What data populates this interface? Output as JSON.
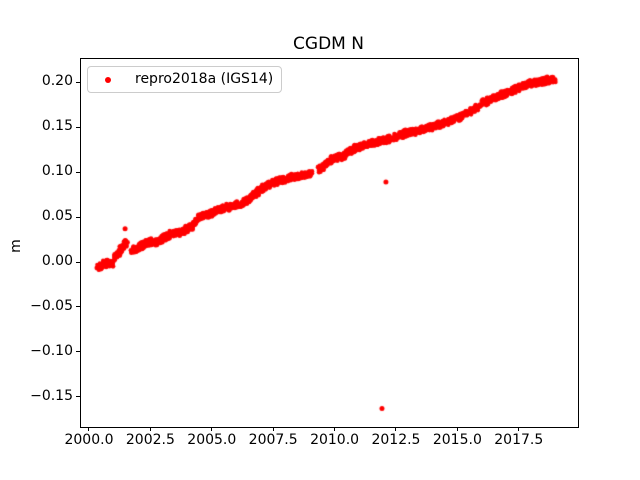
{
  "figure": {
    "title": "CGDM N",
    "ylabel": "m",
    "background": "#ffffff",
    "accent_color": "#ff0000"
  },
  "legend": {
    "label": "repro2018a (IGS14)",
    "marker_color": "#ff0000",
    "position": "upper-left"
  },
  "chart_data": {
    "type": "scatter",
    "title": "CGDM N",
    "xlabel": "",
    "ylabel": "m",
    "grid": false,
    "legend_position": "upper-left",
    "xlim": [
      1999.634,
      2019.871
    ],
    "ylim": [
      -0.1826,
      0.2272
    ],
    "xticks": [
      2000.0,
      2002.5,
      2005.0,
      2007.5,
      2010.0,
      2012.5,
      2015.0,
      2017.5
    ],
    "xtick_labels": [
      "2000.0",
      "2002.5",
      "2005.0",
      "2007.5",
      "2010.0",
      "2012.5",
      "2015.0",
      "2017.5"
    ],
    "yticks": [
      0.2,
      0.15,
      0.1,
      0.05,
      0.0,
      -0.05,
      -0.1,
      -0.15
    ],
    "ytick_labels": [
      "0.20",
      "0.15",
      "0.10",
      "0.05",
      "0.00",
      "−0.05",
      "−0.10",
      "−0.15"
    ],
    "series": [
      {
        "name": "repro2018a (IGS14)",
        "color": "#ff0000",
        "marker": "dot",
        "marker_radius_px": 2.2,
        "band_halfwidth_m": 0.0035,
        "segments": [
          [
            [
              2000.4,
              -0.004
            ],
            [
              2000.48,
              -0.007
            ],
            [
              2000.56,
              -0.004
            ],
            [
              2000.64,
              0.0
            ],
            [
              2000.72,
              -0.002
            ],
            [
              2000.8,
              -0.001
            ],
            [
              2000.88,
              -0.003
            ],
            [
              2000.95,
              -0.001
            ]
          ],
          [
            [
              2001.05,
              0.005
            ],
            [
              2001.15,
              0.009
            ],
            [
              2001.25,
              0.013
            ],
            [
              2001.35,
              0.015
            ],
            [
              2001.45,
              0.02
            ],
            [
              2001.55,
              0.022
            ]
          ],
          [
            [
              2001.75,
              0.013
            ],
            [
              2002.0,
              0.016
            ],
            [
              2002.25,
              0.02
            ],
            [
              2002.5,
              0.023
            ],
            [
              2002.75,
              0.022
            ],
            [
              2003.0,
              0.026
            ],
            [
              2003.25,
              0.03
            ],
            [
              2003.5,
              0.033
            ],
            [
              2003.75,
              0.032
            ],
            [
              2004.0,
              0.037
            ],
            [
              2004.25,
              0.041
            ],
            [
              2004.5,
              0.05
            ],
            [
              2004.75,
              0.052
            ],
            [
              2005.0,
              0.054
            ],
            [
              2005.25,
              0.058
            ],
            [
              2005.5,
              0.06
            ],
            [
              2005.75,
              0.062
            ],
            [
              2006.0,
              0.064
            ],
            [
              2006.25,
              0.065
            ],
            [
              2006.5,
              0.069
            ],
            [
              2006.75,
              0.076
            ],
            [
              2007.0,
              0.081
            ],
            [
              2007.25,
              0.085
            ],
            [
              2007.5,
              0.088
            ],
            [
              2007.75,
              0.091
            ],
            [
              2008.0,
              0.092
            ],
            [
              2008.25,
              0.094
            ],
            [
              2008.5,
              0.096
            ],
            [
              2008.75,
              0.097
            ],
            [
              2009.02,
              0.098
            ]
          ],
          [
            [
              2009.32,
              0.103
            ],
            [
              2009.5,
              0.106
            ],
            [
              2009.75,
              0.112
            ],
            [
              2010.0,
              0.116
            ],
            [
              2010.25,
              0.117
            ],
            [
              2010.4,
              0.119
            ],
            [
              2010.5,
              0.121
            ],
            [
              2010.75,
              0.125
            ],
            [
              2011.0,
              0.128
            ],
            [
              2011.25,
              0.131
            ],
            [
              2011.5,
              0.133
            ],
            [
              2011.75,
              0.134
            ],
            [
              2012.0,
              0.136
            ],
            [
              2012.25,
              0.137
            ],
            [
              2012.5,
              0.139
            ],
            [
              2012.75,
              0.142
            ],
            [
              2013.0,
              0.144
            ],
            [
              2013.25,
              0.145
            ],
            [
              2013.5,
              0.147
            ],
            [
              2013.75,
              0.149
            ],
            [
              2014.0,
              0.151
            ],
            [
              2014.25,
              0.153
            ],
            [
              2014.5,
              0.155
            ],
            [
              2014.75,
              0.158
            ],
            [
              2015.0,
              0.16
            ],
            [
              2015.25,
              0.164
            ],
            [
              2015.5,
              0.167
            ],
            [
              2015.8,
              0.172
            ]
          ],
          [
            [
              2015.95,
              0.176
            ],
            [
              2016.25,
              0.18
            ],
            [
              2016.5,
              0.183
            ],
            [
              2016.75,
              0.186
            ],
            [
              2017.0,
              0.188
            ],
            [
              2017.25,
              0.191
            ],
            [
              2017.5,
              0.194
            ],
            [
              2017.75,
              0.197
            ],
            [
              2018.0,
              0.199
            ],
            [
              2018.25,
              0.2
            ],
            [
              2018.5,
              0.201
            ],
            [
              2018.75,
              0.203
            ],
            [
              2018.97,
              0.204
            ]
          ]
        ],
        "outliers": [
          [
            2001.47,
            0.037
          ],
          [
            2012.09,
            0.089
          ],
          [
            2011.93,
            -0.163
          ]
        ]
      }
    ]
  }
}
